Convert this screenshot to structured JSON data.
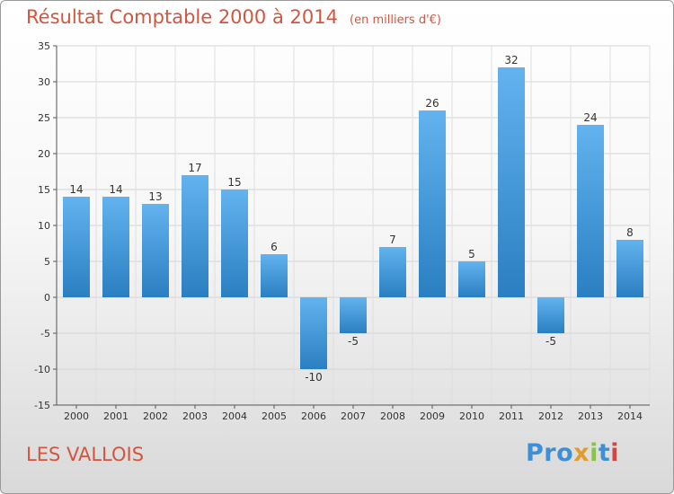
{
  "title": "Résultat Comptable 2000 à 2014",
  "subtitle": "(en milliers d'€)",
  "location": "LES VALLOIS",
  "logo": {
    "p1": "Pro",
    "p2": "x",
    "p3": "i",
    "p4": "t",
    "p5": "i"
  },
  "colors": {
    "bar_light": "#62b3ee",
    "bar_dark": "#2a7fc2",
    "title": "#d2563f"
  },
  "chart_data": {
    "type": "bar",
    "categories": [
      "2000",
      "2001",
      "2002",
      "2003",
      "2004",
      "2005",
      "2006",
      "2007",
      "2008",
      "2009",
      "2010",
      "2011",
      "2012",
      "2013",
      "2014"
    ],
    "values": [
      14,
      14,
      13,
      17,
      15,
      6,
      -10,
      -5,
      7,
      26,
      5,
      32,
      -5,
      24,
      8
    ],
    "ylim": [
      -15,
      35
    ],
    "yticks": [
      -15,
      -10,
      -5,
      0,
      5,
      10,
      15,
      20,
      25,
      30,
      35
    ],
    "grid": true
  }
}
